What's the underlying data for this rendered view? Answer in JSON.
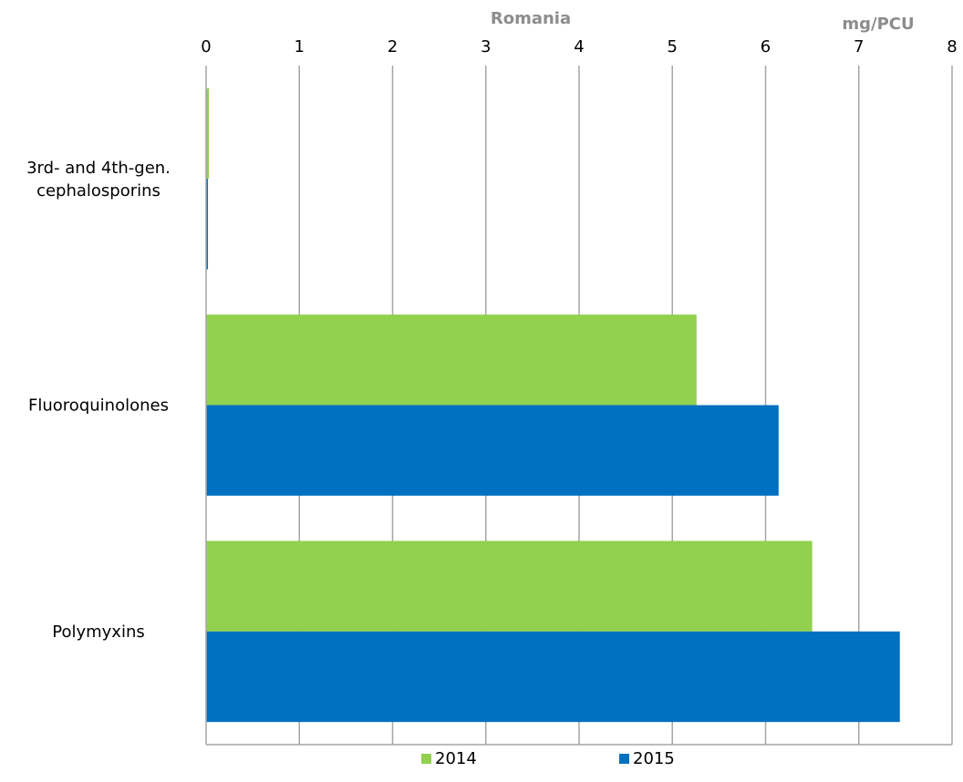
{
  "chart_data": {
    "type": "bar",
    "orientation": "horizontal",
    "title": "Romania",
    "unit_label": "mg/PCU",
    "categories": [
      "3rd- and 4th-gen. cephalosporins",
      "Fluoroquinolones",
      "Polymyxins"
    ],
    "series": [
      {
        "name": "2014",
        "color": "#92d050",
        "values": [
          0.03,
          5.26,
          6.5
        ]
      },
      {
        "name": "2015",
        "color": "#0070c0",
        "values": [
          0.02,
          6.14,
          7.44
        ]
      }
    ],
    "xlim": [
      0,
      8
    ],
    "x_ticks": [
      "0",
      "1",
      "2",
      "3",
      "4",
      "5",
      "6",
      "7",
      "8"
    ],
    "x_axis_position": "top",
    "grid": "vertical",
    "legend_position": "bottom"
  }
}
